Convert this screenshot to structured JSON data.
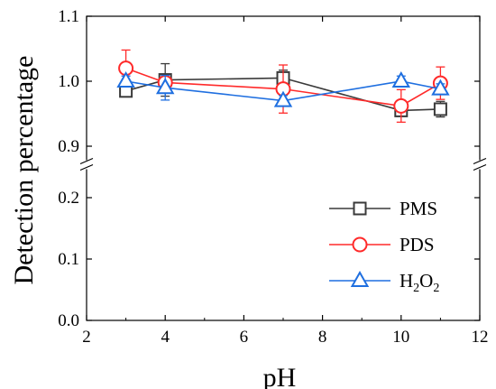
{
  "chart_data": {
    "type": "line",
    "xlabel": "pH",
    "ylabel": "Detection percentage",
    "xlim": [
      2,
      12
    ],
    "x_ticks": [
      "2",
      "4",
      "6",
      "8",
      "10",
      "12"
    ],
    "y_axis_break": {
      "lower": [
        0.0,
        0.25
      ],
      "upper": [
        0.875,
        1.1
      ]
    },
    "y_ticks_lower": [
      "0.0",
      "0.1",
      "0.2"
    ],
    "y_ticks_upper": [
      "0.9",
      "1.0",
      "1.1"
    ],
    "legend_placement": "bottom-right",
    "grid": false,
    "x": [
      3,
      4,
      7,
      10,
      11
    ],
    "series": [
      {
        "name": "PMS",
        "name_parts": [
          {
            "t": "PMS"
          }
        ],
        "color": "#3a3a3a",
        "marker": "square",
        "values": [
          0.985,
          1.002,
          1.005,
          0.955,
          0.957
        ],
        "errors": [
          0.006,
          0.025,
          0.012,
          0.008,
          0.012
        ]
      },
      {
        "name": "PDS",
        "name_parts": [
          {
            "t": "PDS"
          }
        ],
        "color": "#ff2a2a",
        "marker": "circle",
        "values": [
          1.02,
          0.998,
          0.988,
          0.962,
          0.997
        ],
        "errors": [
          0.028,
          0.008,
          0.037,
          0.025,
          0.025
        ]
      },
      {
        "name": "H2O2",
        "name_parts": [
          {
            "t": "H"
          },
          {
            "t": "2",
            "sub": true
          },
          {
            "t": "O"
          },
          {
            "t": "2",
            "sub": true
          }
        ],
        "color": "#1f6fe0",
        "marker": "triangle",
        "values": [
          1.0,
          0.99,
          0.97,
          1.0,
          0.988
        ],
        "errors": [
          0.008,
          0.019,
          0.008,
          0.008,
          0.008
        ]
      }
    ]
  }
}
